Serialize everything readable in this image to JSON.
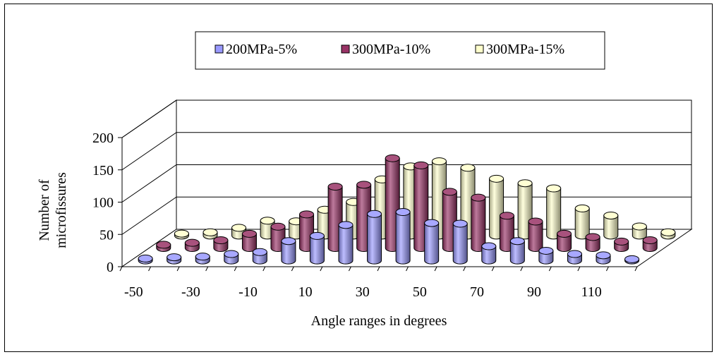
{
  "chart_data": {
    "type": "bar",
    "style": "3d-cylinder",
    "xlabel": "Angle ranges in degrees",
    "ylabel": [
      "Number of",
      "microfissures"
    ],
    "ylim": [
      0,
      200
    ],
    "yticks": [
      "0",
      "50",
      "100",
      "150",
      "200"
    ],
    "categories": [
      -50,
      -40,
      -30,
      -20,
      -10,
      0,
      10,
      20,
      30,
      40,
      50,
      60,
      70,
      80,
      90,
      100,
      110,
      120
    ],
    "xtick_labels": [
      "-50",
      "",
      "-30",
      "",
      "-10",
      "",
      "10",
      "",
      "30",
      "",
      "50",
      "",
      "70",
      "",
      "90",
      "",
      "110",
      ""
    ],
    "grid": true,
    "legend_position": "top",
    "series": [
      {
        "name": "200MPa-5%",
        "color": "#9999ff",
        "values": [
          3,
          5,
          6,
          10,
          13,
          30,
          38,
          55,
          72,
          75,
          58,
          57,
          22,
          30,
          15,
          10,
          8,
          2
        ]
      },
      {
        "name": "300MPa-10%",
        "color": "#993366",
        "values": [
          5,
          8,
          12,
          22,
          33,
          52,
          95,
          98,
          139,
          128,
          87,
          78,
          50,
          41,
          22,
          17,
          10,
          12
        ]
      },
      {
        "name": "300MPa-15%",
        "color": "#ffffcc",
        "values": [
          3,
          5,
          12,
          23,
          22,
          40,
          52,
          87,
          107,
          115,
          105,
          88,
          81,
          73,
          42,
          31,
          14,
          5
        ]
      }
    ]
  }
}
